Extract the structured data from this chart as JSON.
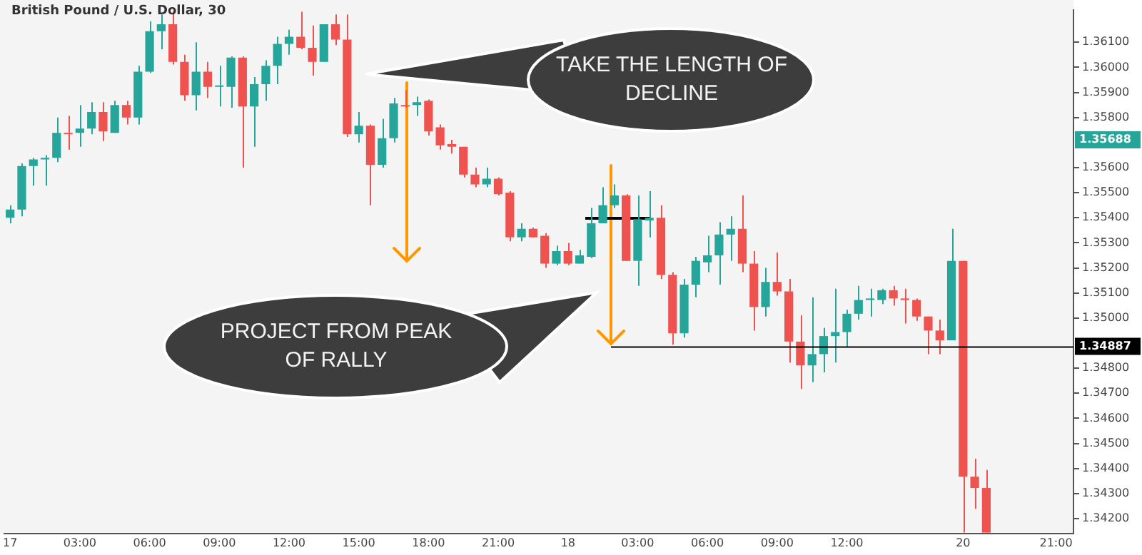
{
  "chart_data": {
    "type": "candlestick",
    "title": "British Pound / U.S. Dollar, 30",
    "categories": [
      "17",
      null,
      null,
      null,
      null,
      null,
      "03:00",
      null,
      null,
      null,
      null,
      null,
      "06:00",
      null,
      null,
      null,
      null,
      null,
      "09:00",
      null,
      null,
      null,
      null,
      null,
      "12:00",
      null,
      null,
      null,
      null,
      null,
      "15:00",
      null,
      null,
      null,
      null,
      null,
      "18:00",
      null,
      null,
      null,
      null,
      null,
      "21:00",
      null,
      null,
      null,
      null,
      null,
      "18",
      null,
      null,
      null,
      null,
      null,
      "03:00",
      null,
      null,
      null,
      null,
      null,
      "06:00",
      null,
      null,
      null,
      null,
      null,
      "09:00",
      null,
      null,
      null,
      null,
      null,
      "12:00",
      null,
      null,
      null,
      null,
      null,
      null,
      null,
      null,
      null,
      "20",
      null,
      null,
      null,
      null,
      null,
      null,
      null,
      "21:00",
      null
    ],
    "ohlc": [
      [
        1.354,
        1.3545,
        1.35378,
        1.35433
      ],
      [
        1.35433,
        1.35617,
        1.35406,
        1.35606
      ],
      [
        1.35606,
        1.35639,
        1.35528,
        1.35633
      ],
      [
        1.35633,
        1.3565,
        1.35528,
        1.35639
      ],
      [
        1.35639,
        1.358,
        1.35622,
        1.35739
      ],
      [
        1.35739,
        1.35806,
        1.35672,
        1.35733
      ],
      [
        1.35739,
        1.3585,
        1.35683,
        1.35756
      ],
      [
        1.35756,
        1.35861,
        1.35733,
        1.35822
      ],
      [
        1.35822,
        1.35861,
        1.35706,
        1.35744
      ],
      [
        1.35739,
        1.35867,
        1.35739,
        1.3585
      ],
      [
        1.3585,
        1.35867,
        1.35772,
        1.358
      ],
      [
        1.358,
        1.36006,
        1.35772,
        1.35983
      ],
      [
        1.35983,
        1.36183,
        1.35978,
        1.36144
      ],
      [
        1.36144,
        1.36211,
        1.36072,
        1.36172
      ],
      [
        1.36172,
        1.36222,
        1.36011,
        1.36022
      ],
      [
        1.36022,
        1.3605,
        1.35867,
        1.35889
      ],
      [
        1.35889,
        1.361,
        1.35828,
        1.35983
      ],
      [
        1.35983,
        1.36022,
        1.35878,
        1.35922
      ],
      [
        1.35922,
        1.36006,
        1.35844,
        1.35922
      ],
      [
        1.35922,
        1.36044,
        1.35839,
        1.36039
      ],
      [
        1.36039,
        1.36044,
        1.356,
        1.35844
      ],
      [
        1.35844,
        1.35961,
        1.35683,
        1.35933
      ],
      [
        1.35933,
        1.36028,
        1.35867,
        1.36006
      ],
      [
        1.36006,
        1.36122,
        1.35933,
        1.36094
      ],
      [
        1.36094,
        1.3615,
        1.3605,
        1.36122
      ],
      [
        1.36122,
        1.36222,
        1.36072,
        1.36078
      ],
      [
        1.36078,
        1.36167,
        1.35967,
        1.36022
      ],
      [
        1.36022,
        1.36172,
        1.36022,
        1.36172
      ],
      [
        1.36172,
        1.36211,
        1.36089,
        1.36111
      ],
      [
        1.36111,
        1.36211,
        1.35722,
        1.35733
      ],
      [
        1.35733,
        1.35822,
        1.357,
        1.35767
      ],
      [
        1.35767,
        1.35772,
        1.3545,
        1.35611
      ],
      [
        1.35611,
        1.35794,
        1.356,
        1.35717
      ],
      [
        1.35717,
        1.35878,
        1.357,
        1.35856
      ],
      [
        1.3585,
        1.35911,
        1.35839,
        1.35844
      ],
      [
        1.3585,
        1.35883,
        1.35806,
        1.35861
      ],
      [
        1.35867,
        1.35872,
        1.35728,
        1.35744
      ],
      [
        1.35761,
        1.35772,
        1.35672,
        1.35689
      ],
      [
        1.35694,
        1.35711,
        1.35656,
        1.35683
      ],
      [
        1.35683,
        1.35683,
        1.35561,
        1.35572
      ],
      [
        1.35572,
        1.356,
        1.35522,
        1.35533
      ],
      [
        1.35533,
        1.356,
        1.35522,
        1.35556
      ],
      [
        1.35556,
        1.35561,
        1.35489,
        1.35494
      ],
      [
        1.355,
        1.35506,
        1.35306,
        1.35322
      ],
      [
        1.35322,
        1.35378,
        1.35306,
        1.35356
      ],
      [
        1.35356,
        1.35361,
        1.35322,
        1.35322
      ],
      [
        1.35328,
        1.35339,
        1.352,
        1.35217
      ],
      [
        1.35217,
        1.35289,
        1.35211,
        1.35267
      ],
      [
        1.35267,
        1.353,
        1.35211,
        1.35217
      ],
      [
        1.35217,
        1.35272,
        1.35217,
        1.3525
      ],
      [
        1.35244,
        1.35439,
        1.35239,
        1.35378
      ],
      [
        1.35378,
        1.35522,
        1.35378,
        1.3545
      ],
      [
        1.3545,
        1.35533,
        1.35439,
        1.35489
      ],
      [
        1.35489,
        1.35494,
        1.35228,
        1.35228
      ],
      [
        1.35228,
        1.35489,
        1.35128,
        1.35394
      ],
      [
        1.35389,
        1.35506,
        1.35322,
        1.354
      ],
      [
        1.354,
        1.3545,
        1.35156,
        1.35172
      ],
      [
        1.35172,
        1.35183,
        1.34894,
        1.34939
      ],
      [
        1.34939,
        1.35156,
        1.34922,
        1.35133
      ],
      [
        1.35133,
        1.35244,
        1.35083,
        1.35228
      ],
      [
        1.35222,
        1.35328,
        1.35183,
        1.3525
      ],
      [
        1.3525,
        1.35383,
        1.35133,
        1.35333
      ],
      [
        1.35333,
        1.35406,
        1.35228,
        1.35356
      ],
      [
        1.35356,
        1.35489,
        1.35183,
        1.35217
      ],
      [
        1.35217,
        1.35267,
        1.3495,
        1.35044
      ],
      [
        1.35044,
        1.352,
        1.35006,
        1.35144
      ],
      [
        1.35144,
        1.35261,
        1.35089,
        1.35106
      ],
      [
        1.35106,
        1.35156,
        1.34822,
        1.34906
      ],
      [
        1.34906,
        1.35011,
        1.34717,
        1.34811
      ],
      [
        1.34811,
        1.35083,
        1.34744,
        1.34856
      ],
      [
        1.34856,
        1.34961,
        1.34783,
        1.34928
      ],
      [
        1.34928,
        1.35117,
        1.34822,
        1.34944
      ],
      [
        1.34944,
        1.35033,
        1.34883,
        1.35017
      ],
      [
        1.35017,
        1.35128,
        1.34994,
        1.35072
      ],
      [
        1.35072,
        1.35117,
        1.35006,
        1.35078
      ],
      [
        1.35072,
        1.35117,
        1.35056,
        1.35111
      ],
      [
        1.35111,
        1.35128,
        1.3505,
        1.35078
      ],
      [
        1.35078,
        1.35117,
        1.34978,
        1.35072
      ],
      [
        1.35072,
        1.35078,
        1.34989,
        1.35006
      ],
      [
        1.35006,
        1.35006,
        1.34856,
        1.3495
      ],
      [
        1.3495,
        1.34994,
        1.34856,
        1.34911
      ],
      [
        1.34911,
        1.35356,
        1.34911,
        1.35228
      ],
      [
        1.35228,
        1.35228,
        1.34144,
        1.34367
      ],
      [
        1.34367,
        1.34439,
        1.34239,
        1.34322
      ],
      [
        1.34322,
        1.34394,
        1.34144,
        1.34144
      ],
      null,
      null,
      null,
      null,
      null,
      null,
      null
    ],
    "ylim": [
      1.3414,
      1.3623
    ],
    "yticks": [
      {
        "value": 1.342,
        "label": "1.34200"
      },
      {
        "value": 1.343,
        "label": "1.34300"
      },
      {
        "value": 1.344,
        "label": "1.34400"
      },
      {
        "value": 1.345,
        "label": "1.34500"
      },
      {
        "value": 1.346,
        "label": "1.34600"
      },
      {
        "value": 1.347,
        "label": "1.34700"
      },
      {
        "value": 1.348,
        "label": "1.34800"
      },
      {
        "value": 1.35,
        "label": "1.35000"
      },
      {
        "value": 1.351,
        "label": "1.35100"
      },
      {
        "value": 1.352,
        "label": "1.35200"
      },
      {
        "value": 1.353,
        "label": "1.35300"
      },
      {
        "value": 1.354,
        "label": "1.35400"
      },
      {
        "value": 1.355,
        "label": "1.35500"
      },
      {
        "value": 1.356,
        "label": "1.35600"
      },
      {
        "value": 1.358,
        "label": "1.35800"
      },
      {
        "value": 1.359,
        "label": "1.35900"
      },
      {
        "value": 1.36,
        "label": "1.36000"
      },
      {
        "value": 1.361,
        "label": "1.36100"
      }
    ],
    "ref_lines": [
      {
        "axis": "y",
        "value": 1.34887,
        "label": "1.34887",
        "color": "#000000"
      }
    ],
    "annotations": [
      "TAKE THE LENGTH OF DECLINE",
      "PROJECT FROM PEAK OF RALLY",
      "1.35688"
    ],
    "legend": false
  }
}
